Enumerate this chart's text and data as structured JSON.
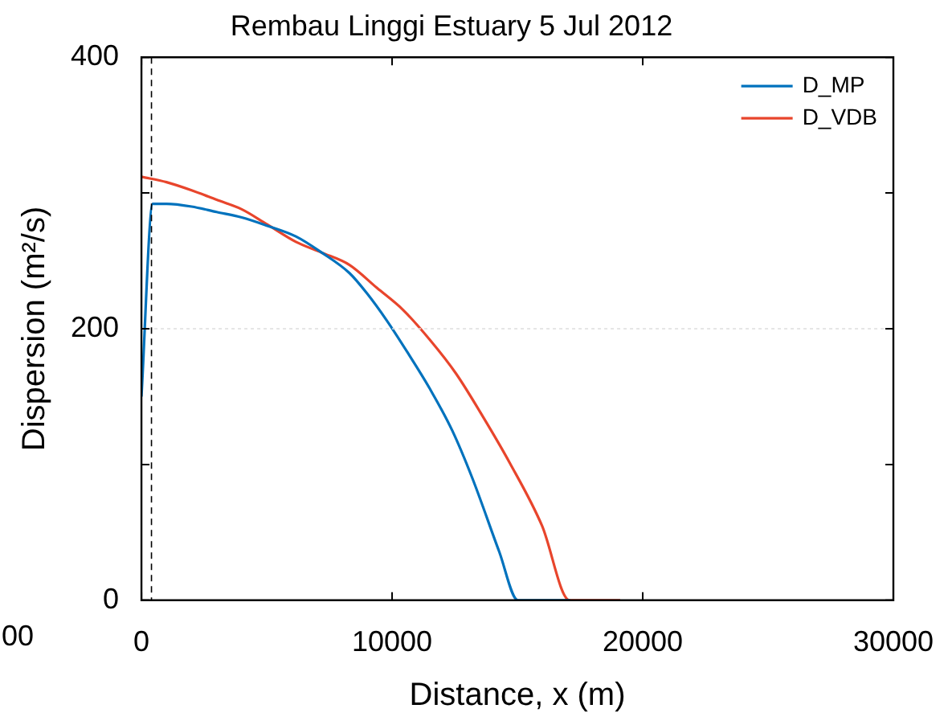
{
  "chart_data": {
    "type": "line",
    "title": "Rembau Linggi Estuary 5 Jul 2012",
    "xlabel": "Distance, x (m)",
    "ylabel": "Dispersion (m²/s)",
    "xlim": [
      0,
      30000
    ],
    "xticks": [
      0,
      10000,
      20000,
      30000
    ],
    "ylim": [
      0,
      400
    ],
    "yticks": [
      0,
      {
        "value": 100,
        "label": null
      },
      200,
      {
        "value": 300,
        "label": null
      },
      400
    ],
    "grid": "y",
    "legend": "top right",
    "marker": "none",
    "line_style": "solid",
    "ref_lines": [
      {
        "axis": "x",
        "value": 400,
        "line_style": "dashed",
        "color": "#000000"
      }
    ],
    "annotations": [
      "00"
    ],
    "series": [
      {
        "name": "D_MP",
        "color": "#0072bd",
        "x": [
          0,
          450,
          1000,
          2000,
          3000,
          4000,
          5000,
          6160,
          7200,
          8300,
          9000,
          9790,
          10600,
          11500,
          12400,
          13200,
          14270,
          15020,
          17100
        ],
        "values": [
          150,
          292,
          292,
          290,
          286,
          282,
          276,
          268,
          256,
          241,
          226,
          206,
          183,
          156,
          125,
          90,
          36,
          0,
          0
        ]
      },
      {
        "name": "D_VDB",
        "color": "#e8452c",
        "x": [
          0,
          1000,
          2000,
          3000,
          4000,
          5000,
          6160,
          7200,
          8300,
          9400,
          10430,
          11500,
          12550,
          13600,
          14700,
          15980,
          17080,
          19100
        ],
        "values": [
          312,
          308,
          302,
          295,
          288,
          277,
          264,
          256,
          247,
          230,
          214,
          192,
          167,
          136,
          101,
          55,
          0,
          0
        ]
      }
    ]
  }
}
